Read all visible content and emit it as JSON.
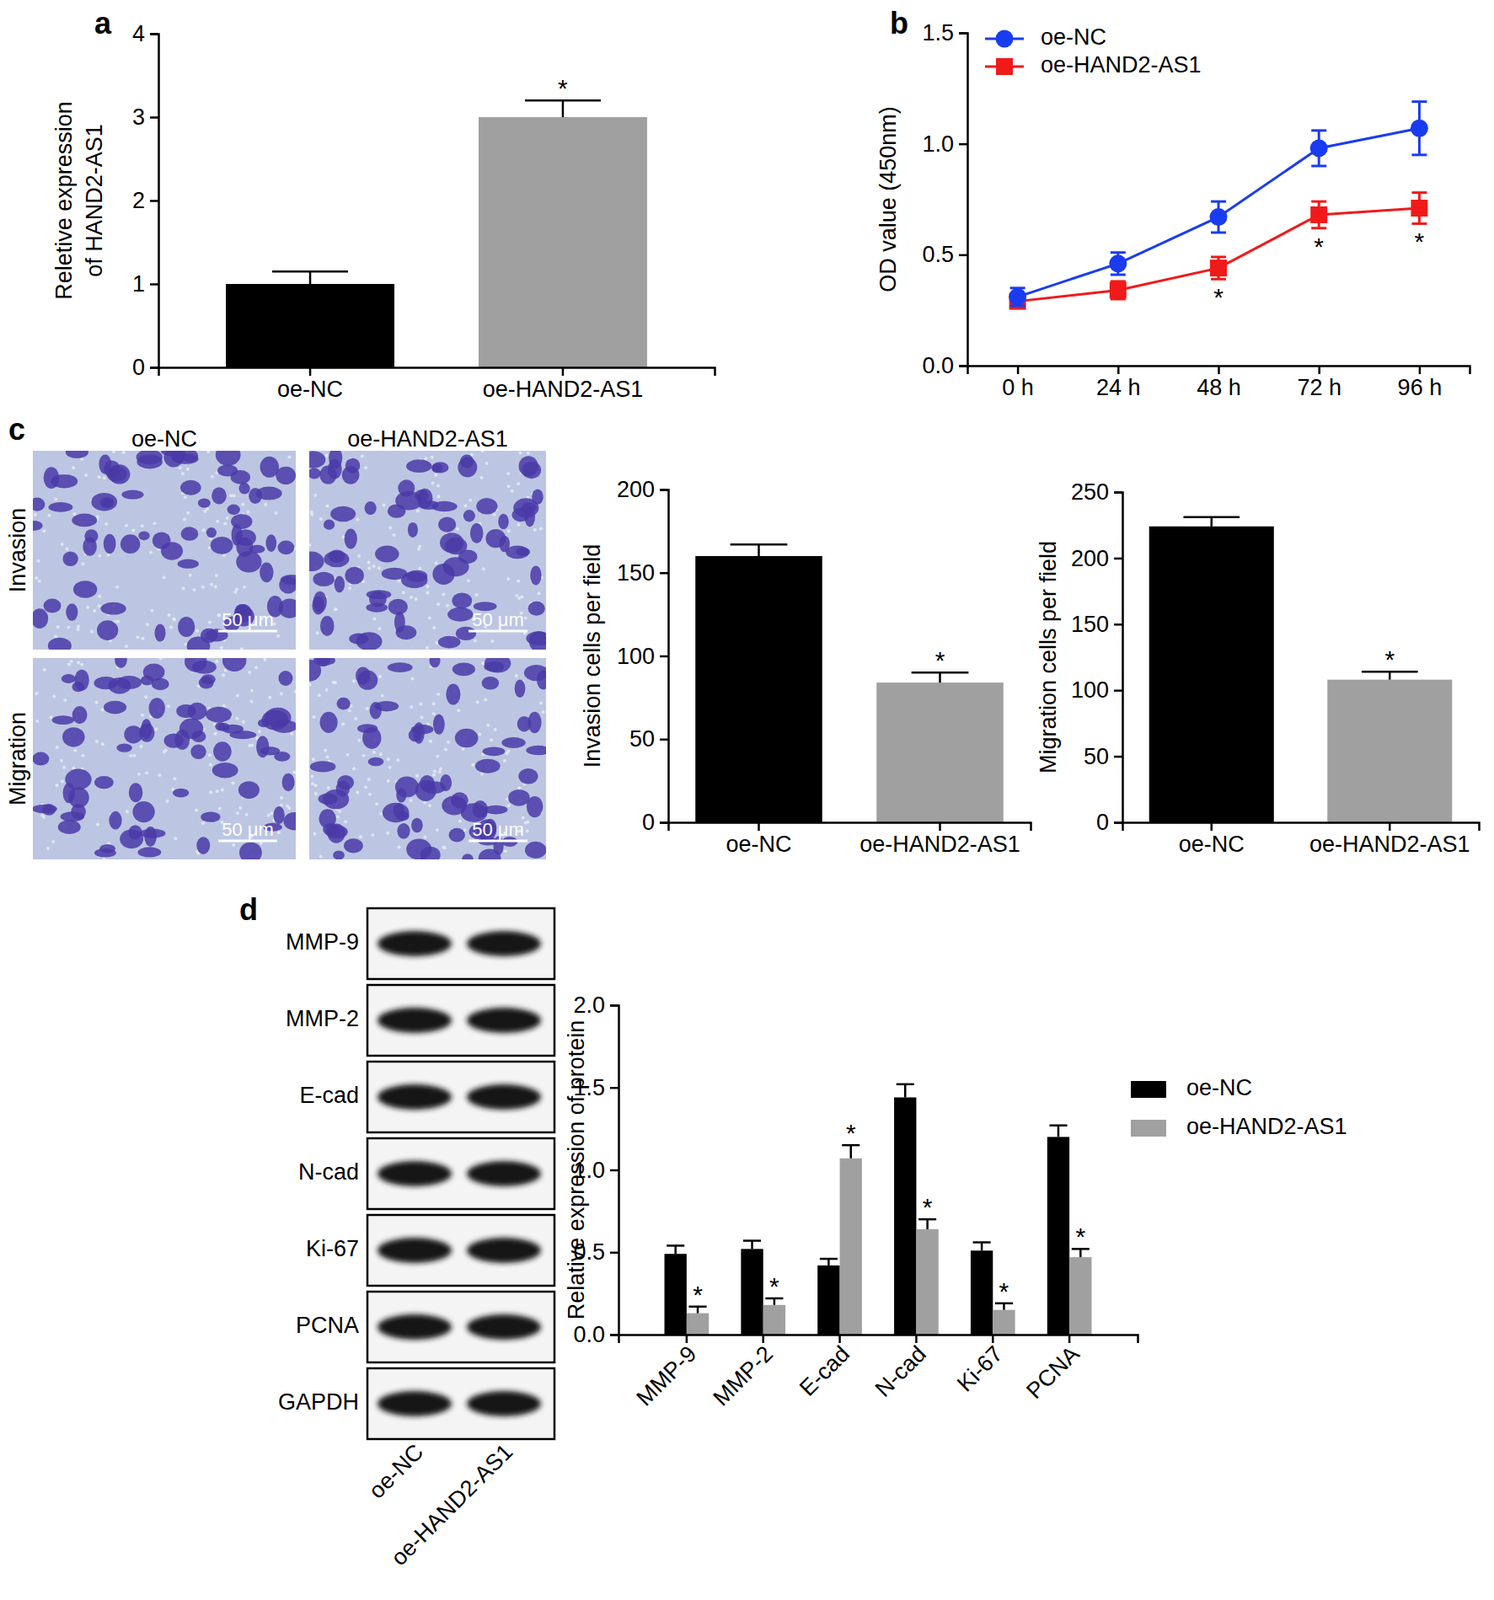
{
  "chart_data": [
    {
      "type": "bar",
      "title": "a",
      "ylabel": [
        "Reletive expression",
        "of HAND2-AS1"
      ],
      "categories": [
        "oe-NC",
        "oe-HAND2-AS1"
      ],
      "values": [
        1.0,
        3.0
      ],
      "errors": [
        0.15,
        0.2
      ],
      "colors": [
        "#000000",
        "#a0a0a0"
      ],
      "ylim": [
        0,
        4
      ],
      "yticks": [
        0,
        1,
        2,
        3,
        4
      ],
      "annotations": [
        {
          "index": 1,
          "text": "*"
        }
      ]
    },
    {
      "type": "line",
      "title": "b",
      "ylabel": "OD value (450nm)",
      "categories": [
        "0 h",
        "24 h",
        "48 h",
        "72 h",
        "96 h"
      ],
      "series": [
        {
          "name": "oe-NC",
          "color": "#1a3cf0",
          "marker": "circle",
          "values": [
            0.31,
            0.46,
            0.67,
            0.98,
            1.07
          ],
          "errors": [
            0.04,
            0.05,
            0.07,
            0.08,
            0.12
          ]
        },
        {
          "name": "oe-HAND2-AS1",
          "color": "#f01a1a",
          "marker": "square",
          "values": [
            0.29,
            0.34,
            0.44,
            0.68,
            0.71
          ],
          "errors": [
            0.03,
            0.04,
            0.05,
            0.06,
            0.07
          ]
        }
      ],
      "ylim": [
        0,
        1.5
      ],
      "yticks": [
        {
          "value": 0,
          "label": "0.0"
        },
        {
          "value": 0.5,
          "label": "0.5"
        },
        {
          "value": 1,
          "label": "1.0"
        },
        {
          "value": 1.5,
          "label": "1.5"
        }
      ],
      "legend": "top-left",
      "annotations": [
        {
          "series": 1,
          "index": 2,
          "text": "*"
        },
        {
          "series": 1,
          "index": 3,
          "text": "*"
        },
        {
          "series": 1,
          "index": 4,
          "text": "*"
        }
      ]
    },
    {
      "type": "bar",
      "ylabel": "Invasion cells per field",
      "categories": [
        "oe-NC",
        "oe-HAND2-AS1"
      ],
      "values": [
        160,
        84
      ],
      "errors": [
        7,
        6
      ],
      "colors": [
        "#000000",
        "#a0a0a0"
      ],
      "ylim": [
        0,
        200
      ],
      "yticks": [
        0,
        50,
        100,
        150,
        200
      ],
      "annotations": [
        {
          "index": 1,
          "text": "*"
        }
      ]
    },
    {
      "type": "bar",
      "ylabel": "Migration cells per field",
      "categories": [
        "oe-NC",
        "oe-HAND2-AS1"
      ],
      "values": [
        224,
        108
      ],
      "errors": [
        7,
        6
      ],
      "colors": [
        "#000000",
        "#a0a0a0"
      ],
      "ylim": [
        0,
        250
      ],
      "yticks": [
        0,
        50,
        100,
        150,
        200,
        250
      ],
      "annotations": [
        {
          "index": 1,
          "text": "*"
        }
      ]
    },
    {
      "type": "bar",
      "ylabel": "Relative expression of protein",
      "categories": [
        "MMP-9",
        "MMP-2",
        "E-cad",
        "N-cad",
        "Ki-67",
        "PCNA"
      ],
      "series": [
        {
          "name": "oe-NC",
          "color": "#000000",
          "values": [
            0.49,
            0.52,
            0.42,
            1.44,
            0.51,
            1.2
          ],
          "errors": [
            0.05,
            0.05,
            0.04,
            0.08,
            0.05,
            0.07
          ]
        },
        {
          "name": "oe-HAND2-AS1",
          "color": "#a0a0a0",
          "values": [
            0.13,
            0.18,
            1.07,
            0.64,
            0.15,
            0.47
          ],
          "errors": [
            0.04,
            0.04,
            0.08,
            0.06,
            0.04,
            0.05
          ]
        }
      ],
      "ylim": [
        0,
        2
      ],
      "yticks": [
        {
          "value": 0,
          "label": "0.0"
        },
        {
          "value": 0.5,
          "label": "0.5"
        },
        {
          "value": 1,
          "label": "1.0"
        },
        {
          "value": 1.5,
          "label": "1.5"
        },
        {
          "value": 2,
          "label": "2.0"
        }
      ],
      "legend": "right",
      "annotations": [
        {
          "series": 1,
          "index": 0,
          "text": "*"
        },
        {
          "series": 1,
          "index": 1,
          "text": "*"
        },
        {
          "series": 1,
          "index": 2,
          "text": "*"
        },
        {
          "series": 1,
          "index": 3,
          "text": "*"
        },
        {
          "series": 1,
          "index": 4,
          "text": "*"
        },
        {
          "series": 1,
          "index": 5,
          "text": "*"
        }
      ]
    }
  ],
  "micrographs": {
    "title": "c",
    "columns": [
      "oe-NC",
      "oe-HAND2-AS1"
    ],
    "rows": [
      "Invasion",
      "Migration"
    ],
    "scale_bar": "50 μm"
  },
  "blot": {
    "title": "d",
    "proteins": [
      "MMP-9",
      "MMP-2",
      "E-cad",
      "N-cad",
      "Ki-67",
      "PCNA",
      "GAPDH"
    ],
    "lanes": [
      "oe-NC",
      "oe-HAND2-AS1"
    ]
  }
}
